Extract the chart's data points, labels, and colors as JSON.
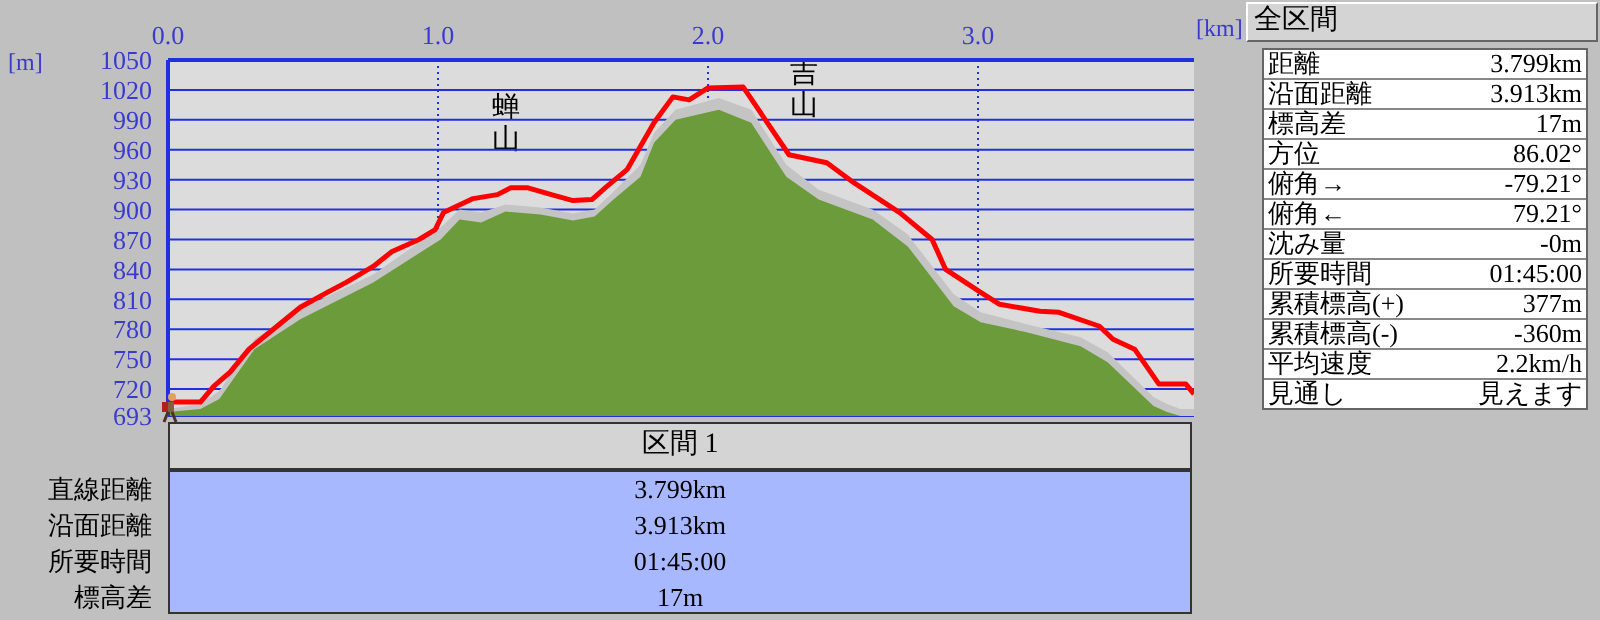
{
  "chart_data": [
    {
      "type": "area",
      "xlabel": "[km]",
      "ylabel": "[m]",
      "xlim": [
        0,
        3.8
      ],
      "ylim": [
        693,
        1050
      ],
      "xticks": [
        {
          "value": 0,
          "label": "0.0"
        },
        {
          "value": 1,
          "label": "1.0"
        },
        {
          "value": 2,
          "label": "2.0"
        },
        {
          "value": 3,
          "label": "3.0"
        }
      ],
      "yticks": [
        693,
        720,
        750,
        780,
        810,
        840,
        870,
        900,
        930,
        960,
        990,
        1020,
        1050
      ],
      "grid": true,
      "series": [
        {
          "type": "area",
          "color": "#c4c4c4",
          "x": [
            0,
            0.12,
            0.19,
            0.32,
            0.49,
            0.76,
            1.01,
            1.08,
            1.16,
            1.25,
            1.38,
            1.5,
            1.58,
            1.65,
            1.75,
            1.8,
            1.88,
            2.04,
            2.16,
            2.29,
            2.41,
            2.61,
            2.74,
            2.91,
            3.01,
            3.18,
            3.38,
            3.48,
            3.65,
            3.7,
            3.75,
            3.8
          ],
          "values": [
            700,
            705,
            718,
            770,
            800,
            835,
            882,
            900,
            897,
            905,
            902,
            896,
            900,
            918,
            945,
            977,
            1000,
            1012,
            1000,
            945,
            920,
            900,
            875,
            815,
            797,
            785,
            772,
            757,
            712,
            705,
            700,
            700
          ]
        },
        {
          "type": "area",
          "color": "#6b9b3a",
          "x": [
            0,
            0.12,
            0.19,
            0.32,
            0.49,
            0.76,
            1.01,
            1.08,
            1.16,
            1.25,
            1.38,
            1.5,
            1.58,
            1.65,
            1.75,
            1.8,
            1.88,
            2.04,
            2.16,
            2.29,
            2.41,
            2.61,
            2.74,
            2.91,
            3.01,
            3.18,
            3.38,
            3.48,
            3.65,
            3.7,
            3.75,
            3.8
          ],
          "values": [
            697,
            700,
            710,
            760,
            790,
            827,
            870,
            890,
            887,
            898,
            895,
            889,
            893,
            910,
            933,
            967,
            990,
            1000,
            987,
            933,
            910,
            890,
            863,
            803,
            787,
            777,
            763,
            747,
            703,
            697,
            693,
            693
          ]
        },
        {
          "type": "line",
          "color": "#ff0000",
          "x": [
            0,
            0.12,
            0.17,
            0.23,
            0.3,
            0.39,
            0.49,
            0.59,
            0.66,
            0.76,
            0.83,
            0.93,
            0.99,
            1.02,
            1.13,
            1.22,
            1.27,
            1.33,
            1.42,
            1.5,
            1.57,
            1.62,
            1.7,
            1.8,
            1.87,
            1.93,
            2,
            2.13,
            2.22,
            2.3,
            2.44,
            2.54,
            2.71,
            2.83,
            2.88,
            3.01,
            3.08,
            3.23,
            3.3,
            3.45,
            3.5,
            3.58,
            3.67,
            3.77,
            3.8
          ],
          "values": [
            707,
            707,
            723,
            737,
            760,
            780,
            802,
            817,
            827,
            843,
            858,
            870,
            880,
            897,
            911,
            915,
            922,
            922,
            915,
            909,
            910,
            922,
            940,
            987,
            1013,
            1010,
            1022,
            1023,
            987,
            955,
            947,
            927,
            897,
            870,
            840,
            817,
            805,
            798,
            797,
            783,
            770,
            760,
            725,
            725,
            715
          ]
        }
      ],
      "annotations": [
        "蝉山",
        "吉山"
      ]
    },
    {
      "type": "other",
      "title": "全区間",
      "annotations": [
        "距離",
        "3.799km",
        "沿面距離",
        "3.913km",
        "標高差",
        "17m",
        "方位",
        "86.02°",
        "俯角→",
        "-79.21°",
        "俯角←",
        "79.21°",
        "沈み量",
        "-0m",
        "所要時間",
        "01:45:00",
        "累積標高(+)",
        "377m",
        "累積標高(-)",
        "-360m",
        "平均速度",
        "2.2km/h",
        "見通し",
        "見えます"
      ]
    },
    {
      "type": "other",
      "title": "区間 1",
      "annotations": [
        "直線距離",
        "3.799km",
        "沿面距離",
        "3.913km",
        "所要時間",
        "01:45:00",
        "標高差",
        "17m"
      ]
    }
  ]
}
